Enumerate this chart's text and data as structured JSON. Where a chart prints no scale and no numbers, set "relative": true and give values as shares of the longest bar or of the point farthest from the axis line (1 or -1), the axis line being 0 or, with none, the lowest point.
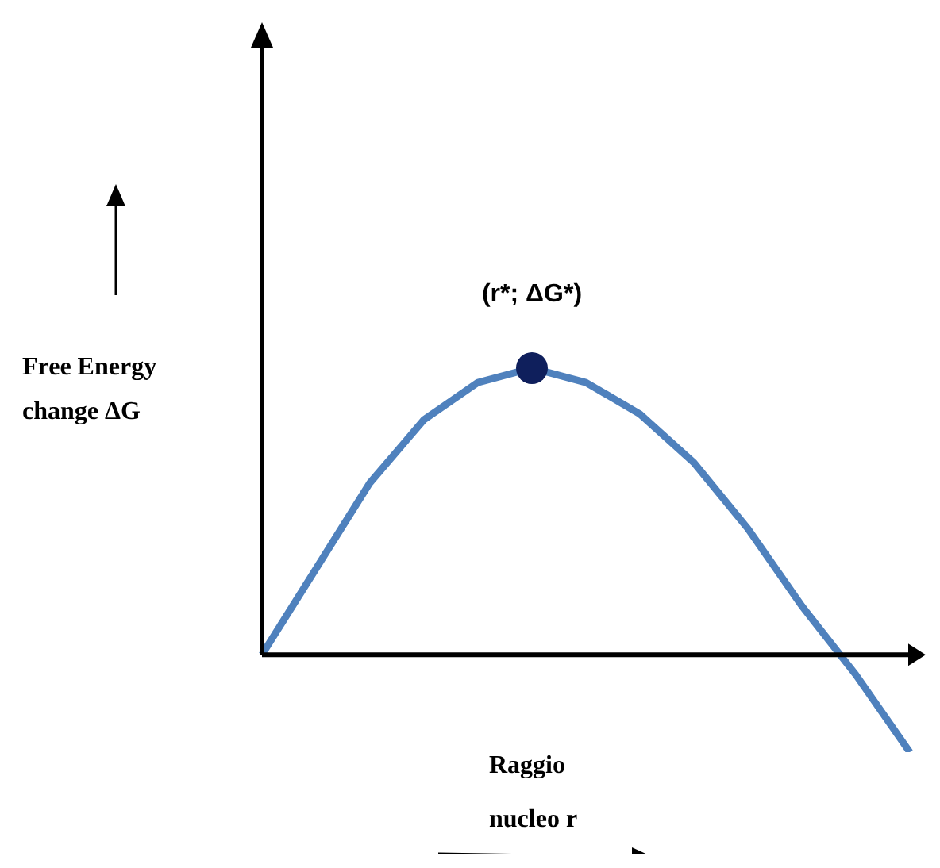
{
  "chart_data": {
    "type": "line",
    "relative": true,
    "xlabel": "Raggio nucleo r",
    "ylabel": "Free Energy change ΔG",
    "categories": [
      null,
      null,
      null,
      null,
      null,
      null,
      null,
      null,
      null,
      null,
      null,
      null,
      null
    ],
    "series": [
      {
        "color": "#4f81bd",
        "marker": "none",
        "values": [
          0,
          0.3,
          0.6,
          0.82,
          0.95,
          1,
          0.95,
          0.84,
          0.67,
          0.44,
          0.17,
          -0.07,
          -0.34
        ]
      }
    ],
    "annotations": [
      {
        "text": "(r*; ΔG*)",
        "y": 1
      }
    ]
  }
}
